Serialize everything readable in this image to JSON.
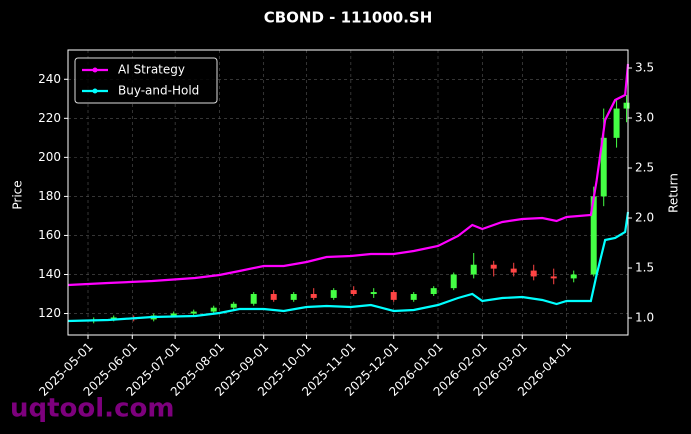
{
  "chart_data": {
    "type": "candlestick",
    "title": "CBOND - 111000.SH",
    "ylabel": "Price",
    "y2label": "Return",
    "watermark": "uqtool.com",
    "grid": true,
    "legend": "upper left",
    "up_color": "#44ff44",
    "down_color": "#ff4444",
    "xlim": [
      "2025-04-17",
      "2026-05-14"
    ],
    "xticks": [
      "2025-05-01",
      "2025-06-01",
      "2025-07-01",
      "2025-08-01",
      "2025-09-01",
      "2025-10-01",
      "2025-11-01",
      "2025-12-01",
      "2026-01-01",
      "2026-02-01",
      "2026-03-01",
      "2026-04-01"
    ],
    "ylim": [
      109,
      255
    ],
    "yticks": [
      120,
      140,
      160,
      180,
      200,
      220,
      240
    ],
    "y2lim": [
      0.83,
      3.68
    ],
    "y2ticks": [
      {
        "value": 1,
        "label": "1.0"
      },
      {
        "value": 1.5,
        "label": "1.5"
      },
      {
        "value": 2,
        "label": "2.0"
      },
      {
        "value": 2.5,
        "label": "2.5"
      },
      {
        "value": 3,
        "label": "3.0"
      },
      {
        "value": 3.5,
        "label": "3.5"
      }
    ],
    "candles": {
      "x": [
        "2025-05-05",
        "2025-05-19",
        "2025-06-02",
        "2025-06-16",
        "2025-06-30",
        "2025-07-14",
        "2025-07-28",
        "2025-08-11",
        "2025-08-25",
        "2025-09-08",
        "2025-09-22",
        "2025-10-06",
        "2025-10-20",
        "2025-11-03",
        "2025-11-17",
        "2025-12-01",
        "2025-12-15",
        "2025-12-29",
        "2026-01-12",
        "2026-01-26",
        "2026-02-09",
        "2026-02-23",
        "2026-03-09",
        "2026-03-23",
        "2026-04-06",
        "2026-04-20",
        "2026-04-27",
        "2026-05-06",
        "2026-05-13"
      ],
      "open": [
        116,
        117,
        118,
        117,
        119,
        120,
        121,
        123,
        125,
        130,
        127,
        130,
        128,
        132,
        130,
        131,
        127,
        130,
        133,
        140,
        145,
        143,
        142,
        139,
        138,
        140,
        180,
        210,
        225
      ],
      "high": [
        118,
        119,
        119,
        120,
        121,
        122,
        124,
        126,
        131,
        132,
        131,
        133,
        133,
        134,
        133,
        132,
        131,
        134,
        141,
        151,
        147,
        146,
        145,
        143,
        142,
        185,
        225,
        230,
        232
      ],
      "low": [
        115,
        116,
        116,
        116,
        118,
        119,
        120,
        122,
        124,
        126,
        126,
        127,
        127,
        129,
        128,
        126,
        126,
        129,
        132,
        138,
        139,
        139,
        137,
        135,
        136,
        139,
        175,
        205,
        218
      ],
      "close": [
        117,
        118,
        117,
        119,
        120,
        121,
        123,
        125,
        130,
        127,
        130,
        128,
        132,
        130,
        131,
        127,
        130,
        133,
        140,
        145,
        143,
        141,
        139,
        138,
        140,
        180,
        210,
        225,
        228
      ]
    },
    "x": [
      "2025-04-17",
      "2025-05-15",
      "2025-06-15",
      "2025-07-15",
      "2025-08-01",
      "2025-08-15",
      "2025-09-01",
      "2025-09-15",
      "2025-10-01",
      "2025-10-15",
      "2025-11-01",
      "2025-11-15",
      "2025-12-01",
      "2025-12-15",
      "2026-01-01",
      "2026-01-15",
      "2026-01-25",
      "2026-02-01",
      "2026-02-15",
      "2026-03-01",
      "2026-03-15",
      "2026-03-25",
      "2026-04-01",
      "2026-04-18",
      "2026-04-22",
      "2026-04-28",
      "2026-05-05",
      "2026-05-12",
      "2026-05-14"
    ],
    "series": [
      {
        "name": "AI Strategy",
        "color": "#ff00ff",
        "axis": "y2",
        "values": [
          1.33,
          1.35,
          1.37,
          1.4,
          1.43,
          1.47,
          1.52,
          1.52,
          1.56,
          1.61,
          1.62,
          1.64,
          1.64,
          1.67,
          1.72,
          1.82,
          1.93,
          1.89,
          1.96,
          1.99,
          2.0,
          1.97,
          2.01,
          2.03,
          2.37,
          2.98,
          3.18,
          3.23,
          3.54
        ]
      },
      {
        "name": "Buy-and-Hold",
        "color": "#00ffff",
        "axis": "y2",
        "values": [
          0.97,
          0.98,
          1.01,
          1.02,
          1.05,
          1.09,
          1.09,
          1.07,
          1.11,
          1.12,
          1.11,
          1.13,
          1.07,
          1.08,
          1.13,
          1.2,
          1.24,
          1.17,
          1.2,
          1.21,
          1.18,
          1.14,
          1.17,
          1.17,
          1.43,
          1.78,
          1.8,
          1.86,
          2.06
        ]
      }
    ]
  }
}
